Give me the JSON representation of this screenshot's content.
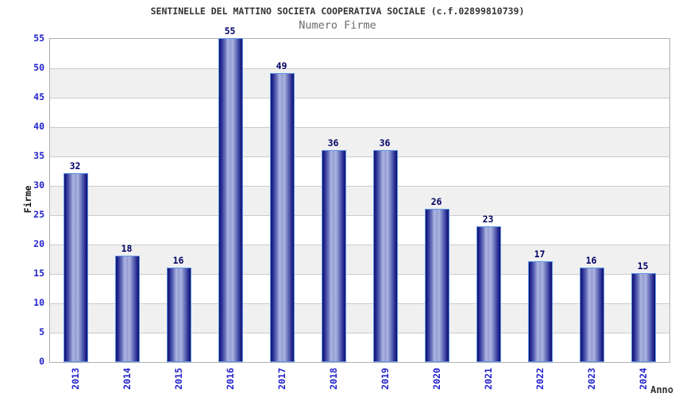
{
  "chart": {
    "title": "SENTINELLE DEL MATTINO SOCIETA COOPERATIVA SOCIALE (c.f.02899810739)",
    "subtitle": "Numero Firme",
    "xlabel": "Anno",
    "ylabel": "Firme"
  },
  "chart_data": {
    "type": "bar",
    "title": "SENTINELLE DEL MATTINO SOCIETA COOPERATIVA SOCIALE (c.f.02899810739)",
    "subtitle": "Numero Firme",
    "xlabel": "Anno",
    "ylabel": "Firme",
    "categories": [
      "2013",
      "2014",
      "2015",
      "2016",
      "2017",
      "2018",
      "2019",
      "2020",
      "2021",
      "2022",
      "2023",
      "2024"
    ],
    "values": [
      32,
      18,
      16,
      55,
      49,
      36,
      36,
      26,
      23,
      17,
      16,
      15
    ],
    "ylim": [
      0,
      55
    ],
    "yticks": [
      0,
      5,
      10,
      15,
      20,
      25,
      30,
      35,
      40,
      45,
      50,
      55
    ],
    "grid": "horizontal alternating bands with gridlines every 5",
    "legend": "none",
    "colors": {
      "bar_dark": "#10106a",
      "bar_mid": "#6b74bc",
      "bar_light": "#aeb6e2",
      "bar_border": "#5e96e6",
      "axis_tick_label": "#2222cc",
      "value_label": "#000066",
      "title": "#333333",
      "subtitle": "#6b6b6b",
      "band_gray": "#f0f0f0",
      "band_white": "#ffffff",
      "grid_line": "#cccccc",
      "plot_border": "#b0b0b0"
    }
  }
}
